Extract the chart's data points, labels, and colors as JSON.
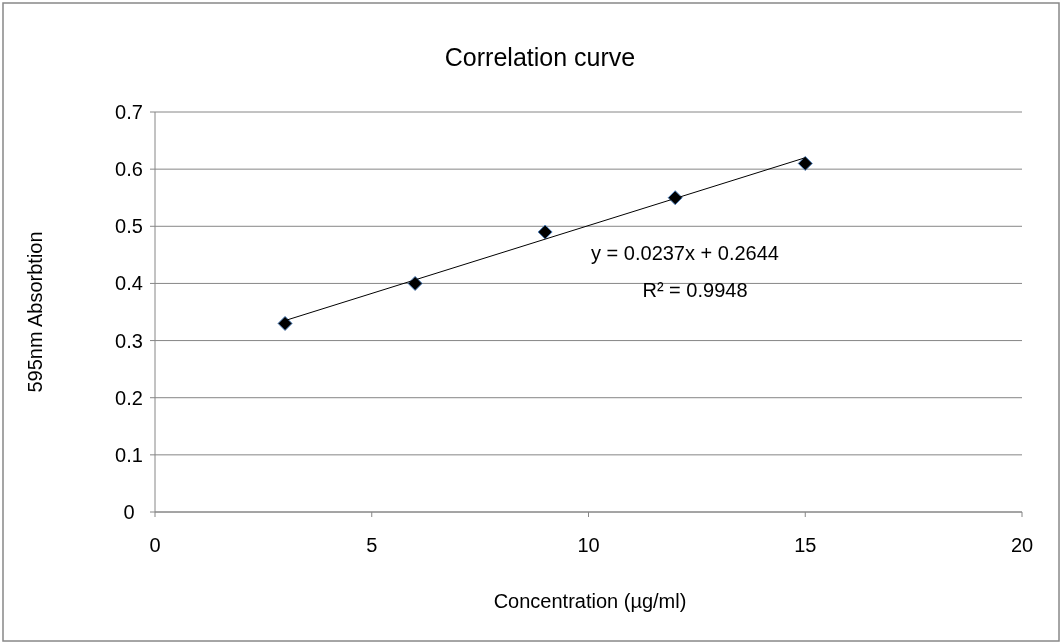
{
  "chart_data": {
    "type": "scatter",
    "title": "Correlation curve",
    "xlabel": "Concentration (µg/ml)",
    "ylabel": "595nm Absorbtion",
    "xlim": [
      0,
      20
    ],
    "xticks": [
      0,
      5,
      10,
      15,
      20
    ],
    "ylim": [
      0,
      0.7
    ],
    "yticks": [
      0,
      0.1,
      0.2,
      0.3,
      0.4,
      0.5,
      0.6,
      0.7
    ],
    "grid": "y",
    "series": [
      {
        "color": "#000000",
        "marker": "diamond",
        "x": [
          3,
          6,
          9,
          12,
          15
        ],
        "values": [
          0.33,
          0.4,
          0.49,
          0.55,
          0.61
        ]
      },
      {
        "type": "line",
        "color": "#000000",
        "marker": "none",
        "line_style": "solid",
        "x": [
          3,
          15
        ],
        "values": [
          0.335,
          0.62
        ]
      }
    ],
    "annotations": [
      "y = 0.0237x + 0.2644",
      "R² = 0.9948"
    ]
  }
}
